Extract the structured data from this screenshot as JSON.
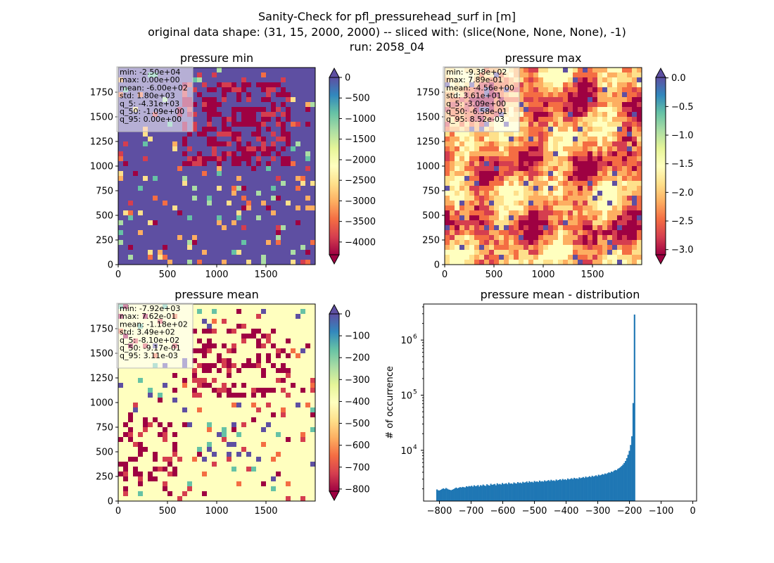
{
  "suptitle": {
    "line1": "Sanity-Check for pfl_pressurehead_surf in [m]",
    "line2": "original data shape: (31, 15, 2000, 2000) -- sliced with: (slice(None, None, None), -1)",
    "line3": "run: 2058_04"
  },
  "maps": [
    {
      "key": "min",
      "title": "pressure min",
      "xlim": [
        0,
        2000
      ],
      "ylim": [
        0,
        2000
      ],
      "xticks": [
        "0",
        "500",
        "1000",
        "1500"
      ],
      "yticks": [
        "0",
        "250",
        "500",
        "750",
        "1000",
        "1250",
        "1500",
        "1750"
      ],
      "stats": [
        "min: -2.50e+04",
        "max: 0.00e+00",
        "mean: -6.00e+02",
        "std: 1.80e+03",
        "q_5: -4.31e+03",
        "q_50: -1.09e+00",
        "q_95: 0.00e+00"
      ],
      "colorbar": {
        "ticks": [
          "0",
          "−500",
          "−1000",
          "−1500",
          "−2000",
          "−2500",
          "−3000",
          "−3500",
          "−4000"
        ],
        "range": [
          -4310,
          0
        ],
        "tick_values": [
          0,
          -500,
          -1000,
          -1500,
          -2000,
          -2500,
          -3000,
          -3500,
          -4000
        ],
        "extend": "both",
        "cmap": "Spectral"
      },
      "dominant": "top"
    },
    {
      "key": "max",
      "title": "pressure max",
      "xlim": [
        0,
        2000
      ],
      "ylim": [
        0,
        2000
      ],
      "xticks": [
        "0",
        "500",
        "1000",
        "1500"
      ],
      "yticks": [
        "0",
        "250",
        "500",
        "750",
        "1000",
        "1250",
        "1500",
        "1750"
      ],
      "stats": [
        "min: -9.38e+02",
        "max: 7.89e-01",
        "mean: -4.56e+00",
        "std: 3.61e+01",
        "q_5: -3.09e+00",
        "q_50: -6.58e-01",
        "q_95: 8.52e-03"
      ],
      "colorbar": {
        "ticks": [
          "0.0",
          "−0.5",
          "−1.0",
          "−1.5",
          "−2.0",
          "−2.5",
          "−3.0"
        ],
        "range": [
          -3.09,
          0.0085
        ],
        "tick_values": [
          0,
          -0.5,
          -1.0,
          -1.5,
          -2.0,
          -2.5,
          -3.0
        ],
        "extend": "both",
        "cmap": "Spectral"
      },
      "dominant": "mixed"
    },
    {
      "key": "mean",
      "title": "pressure mean",
      "xlim": [
        0,
        2000
      ],
      "ylim": [
        0,
        2000
      ],
      "xticks": [
        "0",
        "500",
        "1000",
        "1500"
      ],
      "yticks": [
        "0",
        "250",
        "500",
        "750",
        "1000",
        "1250",
        "1500",
        "1750"
      ],
      "stats": [
        "min: -7.92e+03",
        "max: 7.62e-01",
        "mean: -1.18e+02",
        "std: 3.49e+02",
        "q_5: -8.10e+02",
        "q_50: -9.17e-01",
        "q_95: 3.11e-03"
      ],
      "colorbar": {
        "ticks": [
          "0",
          "−100",
          "−200",
          "−300",
          "−400",
          "−500",
          "−600",
          "−700",
          "−800"
        ],
        "range": [
          -810,
          0.0031
        ],
        "tick_values": [
          0,
          -100,
          -200,
          -300,
          -400,
          -500,
          -600,
          -700,
          -800
        ],
        "extend": "both",
        "cmap": "Spectral"
      },
      "dominant": "near-zero"
    }
  ],
  "chart_data": {
    "type": "bar",
    "title": "pressure mean - distribution",
    "xlabel": "",
    "ylabel": "# of occurrence",
    "yscale": "log",
    "xlim": [
      -850,
      12
    ],
    "ylim": [
      1200,
      4500000
    ],
    "xticks": [
      -800,
      -700,
      -600,
      -500,
      -400,
      -300,
      -200,
      -100,
      0
    ],
    "xtick_labels": [
      "−800",
      "−700",
      "−600",
      "−500",
      "−400",
      "−300",
      "−200",
      "−100",
      "0"
    ],
    "yticks": [
      10000,
      100000,
      1000000
    ],
    "ytick_labels": [
      "10",
      "10",
      "10"
    ],
    "ytick_exponents": [
      "4",
      "5",
      "6"
    ],
    "bin_start": -810,
    "bin_width": 4.05,
    "values": [
      1950,
      1880,
      1870,
      1920,
      1990,
      2040,
      1980,
      2070,
      2010,
      1950,
      1920,
      1890,
      1930,
      1980,
      2050,
      2110,
      2040,
      2090,
      2150,
      2110,
      2170,
      2140,
      2120,
      2230,
      2180,
      2250,
      2210,
      2280,
      2190,
      2320,
      2240,
      2260,
      2340,
      2200,
      2330,
      2270,
      2390,
      2300,
      2260,
      2420,
      2330,
      2290,
      2470,
      2360,
      2410,
      2450,
      2320,
      2520,
      2410,
      2460,
      2390,
      2550,
      2440,
      2480,
      2530,
      2420,
      2600,
      2480,
      2510,
      2450,
      2610,
      2530,
      2490,
      2650,
      2550,
      2600,
      2520,
      2680,
      2590,
      2630,
      2720,
      2580,
      2750,
      2640,
      2690,
      2610,
      2780,
      2680,
      2730,
      2650,
      2820,
      2710,
      2760,
      2700,
      2850,
      2740,
      2800,
      2880,
      2760,
      2920,
      2800,
      2850,
      2780,
      2950,
      2840,
      2900,
      2990,
      2860,
      3020,
      2920,
      2980,
      2890,
      3080,
      2960,
      3030,
      3120,
      3000,
      3170,
      3060,
      3110,
      3040,
      3230,
      3120,
      3180,
      3280,
      3150,
      3340,
      3220,
      3290,
      3390,
      3260,
      3460,
      3330,
      3420,
      3520,
      3390,
      3610,
      3500,
      3580,
      3700,
      3620,
      3800,
      3720,
      3850,
      3980,
      3910,
      4120,
      4050,
      4260,
      4400,
      4350,
      4600,
      4750,
      4950,
      5200,
      5500,
      5900,
      6400,
      7200,
      8300,
      9800,
      12500,
      18000,
      72000,
      2900000
    ]
  }
}
